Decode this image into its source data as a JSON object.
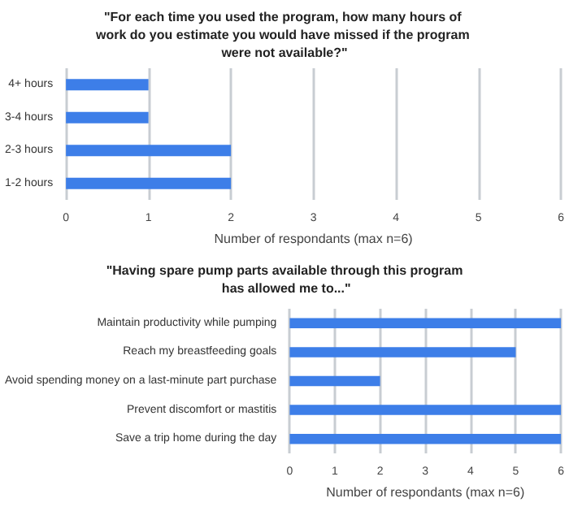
{
  "chart_data": [
    {
      "type": "bar",
      "orientation": "horizontal",
      "title": "\"For each time you used the program, how many hours of work do you estimate you would have missed if the program were not available?\"",
      "xlabel": "Number of respondants (max n=6)",
      "categories": [
        "4+ hours",
        "3-4 hours",
        "2-3 hours",
        "1-2 hours"
      ],
      "values": [
        1,
        1,
        2,
        2
      ],
      "color": "#3d7ee8",
      "xlim": [
        0,
        6
      ],
      "xticks": [
        0,
        1,
        2,
        3,
        4,
        5,
        6
      ],
      "grid": "x"
    },
    {
      "type": "bar",
      "orientation": "horizontal",
      "title": "\"Having spare pump parts available through this program has allowed me to...\"",
      "xlabel": "Number of respondants (max n=6)",
      "categories": [
        "Maintain productivity while pumping",
        "Reach my breastfeeding goals",
        "Avoid spending money on a last-minute part purchase",
        "Prevent discomfort or mastitis",
        "Save a trip home during the day"
      ],
      "values": [
        6,
        5,
        2,
        6,
        6
      ],
      "color": "#3d7ee8",
      "xlim": [
        0,
        6
      ],
      "xticks": [
        0,
        1,
        2,
        3,
        4,
        5,
        6
      ],
      "grid": "x"
    }
  ]
}
